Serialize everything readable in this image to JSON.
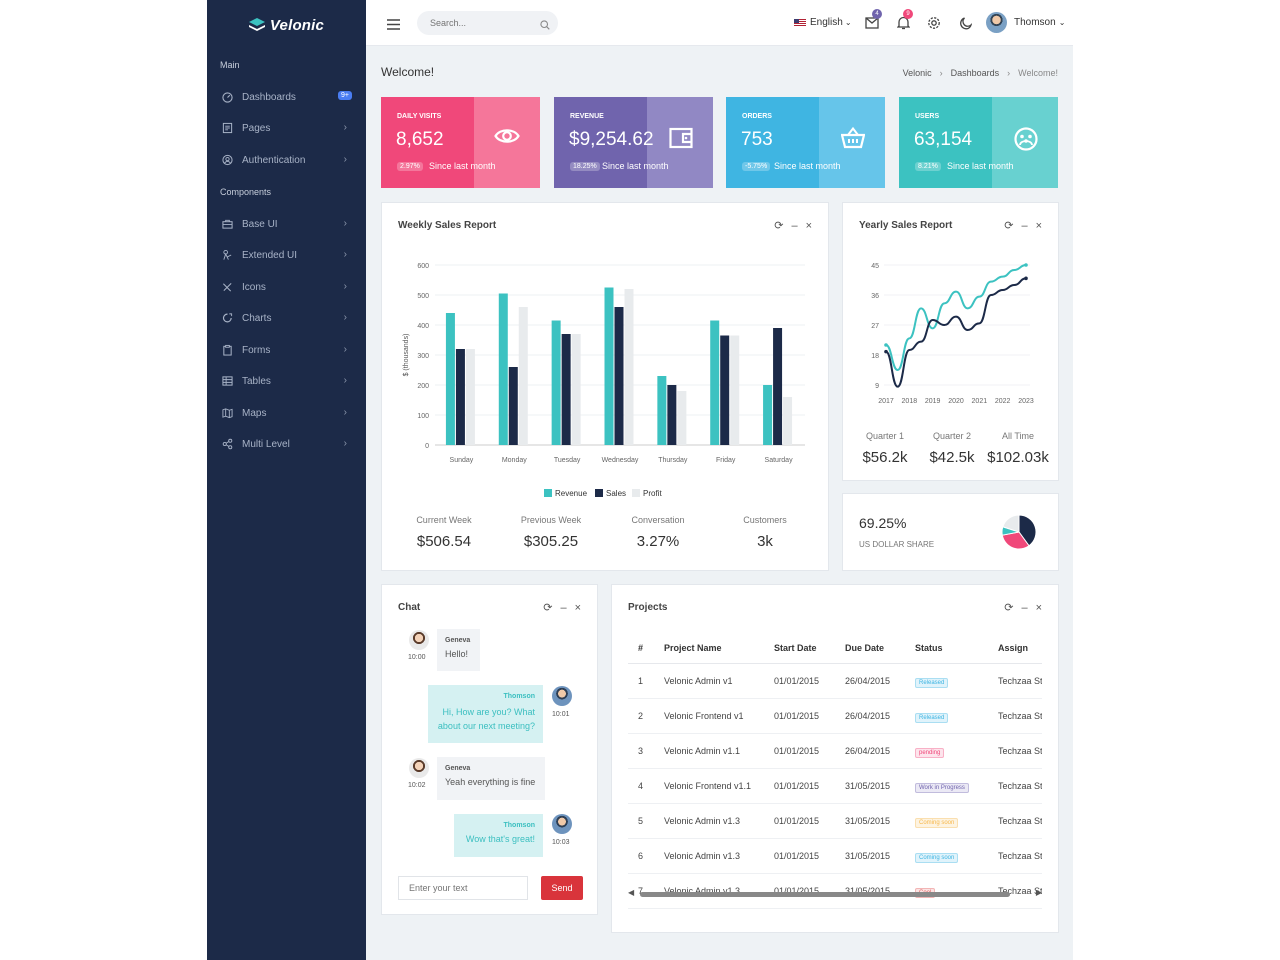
{
  "sidebar": {
    "logo": "Velonic",
    "section_main": "Main",
    "section_components": "Components",
    "dashboards": {
      "label": "Dashboards",
      "badge": "9+"
    },
    "items": [
      {
        "label": "Pages",
        "icon": "pages-icon"
      },
      {
        "label": "Authentication",
        "icon": "auth-icon"
      },
      {
        "label": "Base UI",
        "icon": "briefcase-icon"
      },
      {
        "label": "Extended UI",
        "icon": "extended-icon"
      },
      {
        "label": "Icons",
        "icon": "brush-icon"
      },
      {
        "label": "Charts",
        "icon": "chart-icon"
      },
      {
        "label": "Forms",
        "icon": "clipboard-icon"
      },
      {
        "label": "Tables",
        "icon": "table-icon"
      },
      {
        "label": "Maps",
        "icon": "map-icon"
      },
      {
        "label": "Multi Level",
        "icon": "share-icon"
      }
    ]
  },
  "header": {
    "search_placeholder": "Search...",
    "language": "English",
    "mail_badge": "4",
    "notif_badge": "9",
    "username": "Thomson"
  },
  "page": {
    "title": "Welcome!",
    "breadcrumb": [
      "Velonic",
      "Dashboards",
      "Welcome!"
    ]
  },
  "stats": [
    {
      "label": "Daily Visits",
      "value": "8,652",
      "pct": "2.97%",
      "since": "Since last month",
      "icon": "eye-icon",
      "color": "#f0487a",
      "color2": "#f5769a"
    },
    {
      "label": "Revenue",
      "value": "$9,254.62",
      "pct": "18.25%",
      "since": "Since last month",
      "icon": "wallet-icon",
      "color": "#7064ad",
      "color2": "#9188c4"
    },
    {
      "label": "Orders",
      "value": "753",
      "pct": "-5.75%",
      "since": "Since last month",
      "icon": "basket-icon",
      "color": "#3fb5e2",
      "color2": "#66c5ea"
    },
    {
      "label": "Users",
      "value": "63,154",
      "pct": "8.21%",
      "since": "Since last month",
      "icon": "group-icon",
      "color": "#3cc2c1",
      "color2": "#68d1d0"
    }
  ],
  "weekly": {
    "title": "Weekly Sales Report",
    "legend": [
      "Revenue",
      "Sales",
      "Profit"
    ],
    "metrics": [
      {
        "label": "Current Week",
        "value": "$506.54"
      },
      {
        "label": "Previous Week",
        "value": "$305.25"
      },
      {
        "label": "Conversation",
        "value": "3.27%"
      },
      {
        "label": "Customers",
        "value": "3k"
      }
    ]
  },
  "yearly": {
    "title": "Yearly Sales Report",
    "metrics": [
      {
        "label": "Quarter 1",
        "value": "$56.2k"
      },
      {
        "label": "Quarter 2",
        "value": "$42.5k"
      },
      {
        "label": "All Time",
        "value": "$102.03k"
      }
    ]
  },
  "share": {
    "value": "69.25%",
    "label": "US DOLLAR SHARE"
  },
  "chart_data": [
    {
      "type": "bar",
      "title": "Weekly Sales Report",
      "ylabel": "$ (thousands)",
      "ylim": [
        0,
        600
      ],
      "yticks": [
        0,
        100,
        200,
        300,
        400,
        500,
        600
      ],
      "categories": [
        "Sunday",
        "Monday",
        "Tuesday",
        "Wednesday",
        "Thursday",
        "Friday",
        "Saturday"
      ],
      "series": [
        {
          "name": "Revenue",
          "color": "#3cc2c1",
          "values": [
            440,
            505,
            415,
            525,
            230,
            415,
            200
          ]
        },
        {
          "name": "Sales",
          "color": "#1c2a48",
          "values": [
            320,
            260,
            370,
            460,
            200,
            365,
            390
          ]
        },
        {
          "name": "Profit",
          "color": "#e8ebed",
          "values": [
            320,
            460,
            370,
            520,
            180,
            365,
            160
          ]
        }
      ],
      "legend": "bottom",
      "grid": true
    },
    {
      "type": "line",
      "title": "Yearly Sales Report",
      "ylim": [
        9,
        45
      ],
      "yticks": [
        9,
        18,
        27,
        36,
        45
      ],
      "categories": [
        "2017",
        "2018",
        "2019",
        "2020",
        "2021",
        "2022",
        "2023"
      ],
      "series": [
        {
          "color": "#3cc2c1",
          "x": [
            0,
            0.5,
            1,
            1.5,
            2,
            2.5,
            3,
            3.5,
            4,
            4.5,
            5,
            5.5,
            6
          ],
          "values": [
            21,
            13.5,
            23,
            32,
            26,
            33.5,
            37,
            32,
            35.5,
            40,
            41.5,
            43.5,
            45
          ]
        },
        {
          "color": "#1c2a48",
          "x": [
            0,
            0.5,
            1,
            1.5,
            2,
            2.5,
            3,
            3.5,
            4,
            4.5,
            5,
            5.5,
            6
          ],
          "values": [
            19,
            8.5,
            19.5,
            22,
            28.5,
            27,
            29.5,
            25.5,
            27.5,
            36,
            37.5,
            39,
            41
          ]
        }
      ],
      "grid": true
    },
    {
      "type": "pie",
      "slices": [
        {
          "value": 40,
          "color": "#1c2a48"
        },
        {
          "value": 32,
          "color": "#f0487a"
        },
        {
          "value": 8,
          "color": "#3cc2c1"
        },
        {
          "value": 20,
          "color": "#e8ebed"
        }
      ]
    }
  ],
  "chat": {
    "title": "Chat",
    "messages": [
      {
        "who": "Geneva",
        "text": "Hello!",
        "time": "10:00",
        "side": "left"
      },
      {
        "who": "Thomson",
        "line1": "Hi, How are you? What",
        "line2": "about our next meeting?",
        "time": "10:01",
        "side": "right"
      },
      {
        "who": "Geneva",
        "text": "Yeah everything is fine",
        "time": "10:02",
        "side": "left"
      },
      {
        "who": "Thomson",
        "text": "Wow that's great!",
        "time": "10:03",
        "side": "right"
      }
    ],
    "input_placeholder": "Enter your text",
    "send_label": "Send"
  },
  "projects": {
    "title": "Projects",
    "columns": [
      "#",
      "Project Name",
      "Start Date",
      "Due Date",
      "Status",
      "Assign"
    ],
    "rows": [
      {
        "num": "1",
        "name": "Velonic Admin v1",
        "start": "01/01/2015",
        "due": "26/04/2015",
        "status": "Released",
        "color": "#3fb5e2",
        "bg": "#e0f3fb",
        "assign": "Techzaa Studio"
      },
      {
        "num": "2",
        "name": "Velonic Frontend v1",
        "start": "01/01/2015",
        "due": "26/04/2015",
        "status": "Released",
        "color": "#3fb5e2",
        "bg": "#e0f3fb",
        "assign": "Techzaa Studio"
      },
      {
        "num": "3",
        "name": "Velonic Admin v1.1",
        "start": "01/01/2015",
        "due": "26/04/2015",
        "status": "pending",
        "color": "#f0487a",
        "bg": "#fde4ec",
        "assign": "Techzaa Studio"
      },
      {
        "num": "4",
        "name": "Velonic Frontend v1.1",
        "start": "01/01/2015",
        "due": "31/05/2015",
        "status": "Work in Progress",
        "color": "#7064ad",
        "bg": "#ebe9f5",
        "assign": "Techzaa Studio"
      },
      {
        "num": "5",
        "name": "Velonic Admin v1.3",
        "start": "01/01/2015",
        "due": "31/05/2015",
        "status": "Coming soon",
        "color": "#f7b84b",
        "bg": "#fdf3e1",
        "assign": "Techzaa Studio"
      },
      {
        "num": "6",
        "name": "Velonic Admin v1.3",
        "start": "01/01/2015",
        "due": "31/05/2015",
        "status": "Coming soon",
        "color": "#3fb5e2",
        "bg": "#e0f3fb",
        "assign": "Techzaa Studio"
      },
      {
        "num": "7",
        "name": "Velonic Admin v1.3",
        "start": "01/01/2015",
        "due": "31/05/2015",
        "status": "Cool",
        "color": "#e05a5a",
        "bg": "#fbe3e3",
        "assign": "Techzaa Studio"
      }
    ]
  }
}
